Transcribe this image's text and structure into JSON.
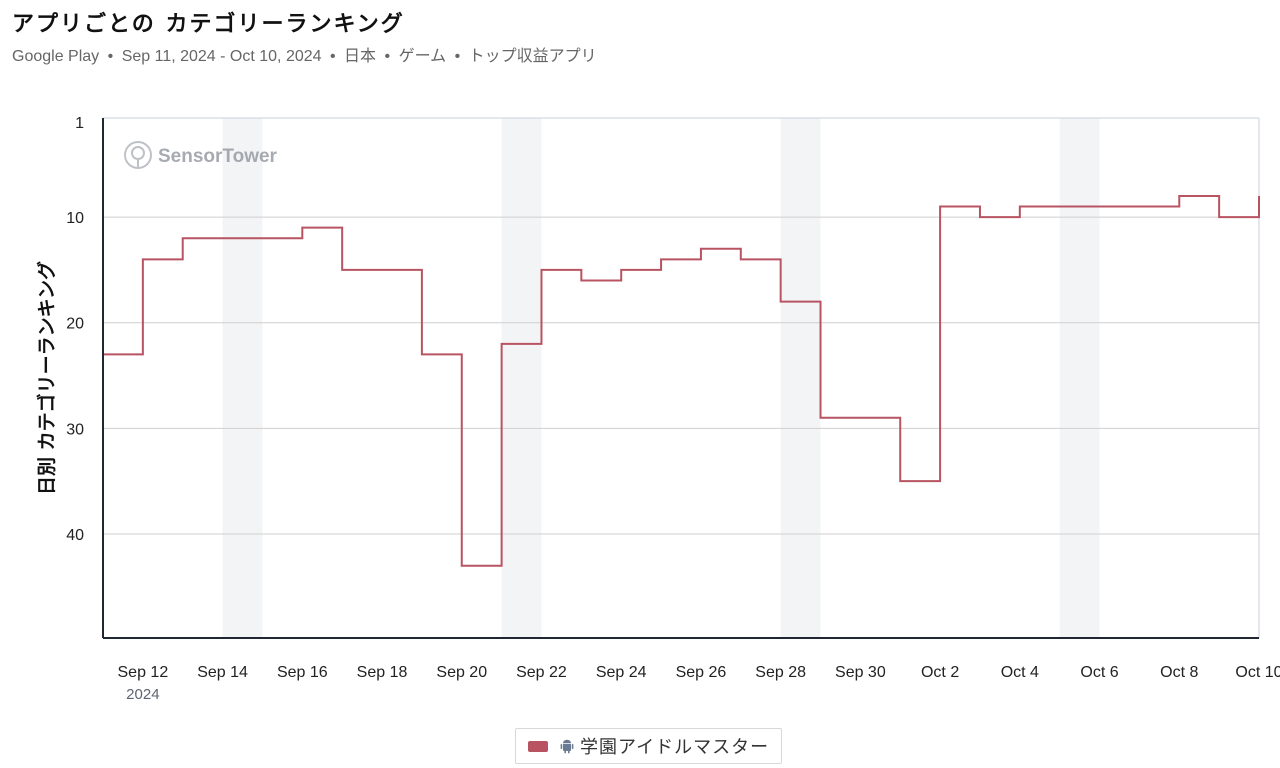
{
  "title": "アプリごとの カテゴリーランキング",
  "subtitle": {
    "store": "Google Play",
    "range": "Sep 11, 2024 - Oct 10, 2024",
    "country": "日本",
    "category": "ゲーム",
    "chart": "トップ収益アプリ",
    "separator": "•"
  },
  "watermark": "SensorTower",
  "colors": {
    "series": "#b85462",
    "band": "#f3f4f6",
    "grid": "#cfcfcf",
    "axis": "#1f2733"
  },
  "chart_data": {
    "type": "line",
    "step": true,
    "ylabel": "日別 カテゴリーランキング",
    "xlabel": "",
    "y_inverted": true,
    "ylim": [
      1,
      50
    ],
    "yticks": [
      1,
      10,
      20,
      30,
      40
    ],
    "x_ticks": [
      {
        "label": "Sep 12",
        "sub": "2024"
      },
      {
        "label": "Sep 14"
      },
      {
        "label": "Sep 16"
      },
      {
        "label": "Sep 18"
      },
      {
        "label": "Sep 20"
      },
      {
        "label": "Sep 22"
      },
      {
        "label": "Sep 24"
      },
      {
        "label": "Sep 26"
      },
      {
        "label": "Sep 28"
      },
      {
        "label": "Sep 30"
      },
      {
        "label": "Oct 2"
      },
      {
        "label": "Oct 4"
      },
      {
        "label": "Oct 6"
      },
      {
        "label": "Oct 8"
      },
      {
        "label": "Oct 10"
      }
    ],
    "weekend_bands": [
      [
        "Sep 14",
        "Sep 15"
      ],
      [
        "Sep 21",
        "Sep 22"
      ],
      [
        "Sep 28",
        "Sep 29"
      ],
      [
        "Oct 5",
        "Oct 6"
      ]
    ],
    "x": [
      "Sep 11",
      "Sep 12",
      "Sep 13",
      "Sep 14",
      "Sep 15",
      "Sep 16",
      "Sep 17",
      "Sep 18",
      "Sep 19",
      "Sep 20",
      "Sep 21",
      "Sep 22",
      "Sep 23",
      "Sep 24",
      "Sep 25",
      "Sep 26",
      "Sep 27",
      "Sep 28",
      "Sep 29",
      "Sep 30",
      "Oct 1",
      "Oct 2",
      "Oct 3",
      "Oct 4",
      "Oct 5",
      "Oct 6",
      "Oct 7",
      "Oct 8",
      "Oct 9",
      "Oct 10"
    ],
    "series": [
      {
        "name": "学園アイドルマスター",
        "platform_icon": "android-icon",
        "values": [
          23,
          14,
          12,
          12,
          12,
          11,
          15,
          15,
          23,
          43,
          22,
          15,
          16,
          15,
          14,
          13,
          14,
          18,
          29,
          29,
          35,
          9,
          10,
          9,
          9,
          9,
          9,
          8,
          10,
          8
        ]
      }
    ]
  }
}
